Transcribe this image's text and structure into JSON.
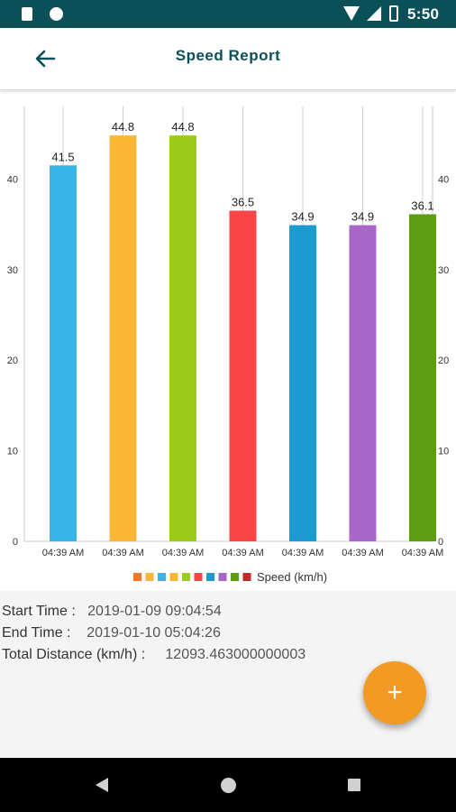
{
  "status_bar": {
    "time": "5:50",
    "icons": [
      "sd-card-icon",
      "circle-icon",
      "wifi-icon",
      "signal-icon",
      "battery-icon"
    ]
  },
  "app_bar": {
    "title": "Speed Report",
    "back_icon": "arrow-left-icon"
  },
  "chart_data": {
    "type": "bar",
    "categories": [
      "04:39 AM",
      "04:39 AM",
      "04:39 AM",
      "04:39 AM",
      "04:39 AM",
      "04:39 AM",
      "04:39 AM"
    ],
    "values": [
      41.5,
      44.8,
      44.8,
      36.5,
      34.9,
      34.9,
      36.1
    ],
    "value_labels": [
      "41.5",
      "44.8",
      "44.8",
      "36.5",
      "34.9",
      "34.9",
      "36.1"
    ],
    "colors": [
      "#3ab4e6",
      "#fbb734",
      "#9bcc1a",
      "#f84444",
      "#1c9bd2",
      "#a867c8",
      "#5c9d12"
    ],
    "ylim": [
      0,
      48
    ],
    "yticks": [
      "0",
      "10",
      "20",
      "30",
      "40"
    ],
    "grid": true,
    "legend": {
      "label": "Speed (km/h)",
      "swatch_colors": [
        "#f3762a",
        "#fbb734",
        "#3ab4e6",
        "#fbb734",
        "#9bcc1a",
        "#f84444",
        "#1c9bd2",
        "#a867c8",
        "#5c9d12",
        "#c62828"
      ],
      "placement": "bottom-center"
    }
  },
  "info": {
    "start_label": "Start Time :",
    "start_value": "2019-01-09 09:04:54",
    "end_label": "End Time :",
    "end_value": "2019-01-10 05:04:26",
    "distance_label": "Total Distance (km/h) :",
    "distance_value": "12093.463000000003"
  },
  "fab": {
    "label": "+"
  },
  "nav_bar": {
    "icons": [
      "nav-back-icon",
      "nav-home-icon",
      "nav-recent-icon"
    ]
  }
}
